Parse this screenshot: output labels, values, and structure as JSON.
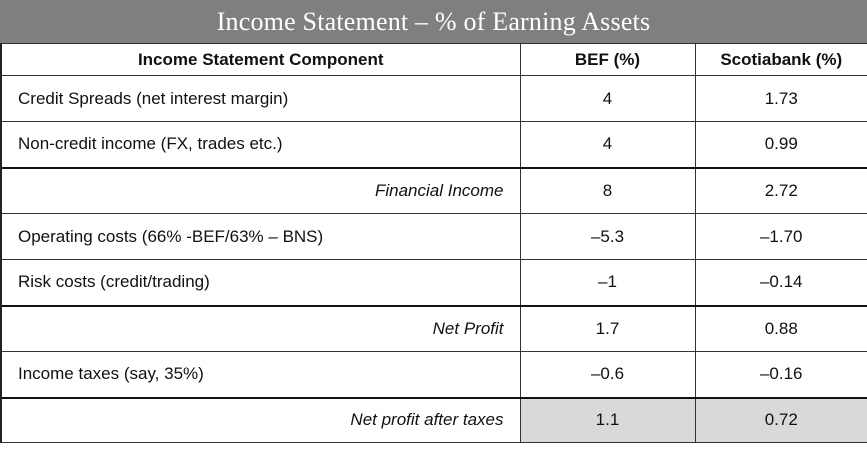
{
  "title": "Income Statement – % of Earning Assets",
  "columns": {
    "component": "Income Statement Component",
    "bef": "BEF (%)",
    "scotiabank": "Scotiabank (%)"
  },
  "rows": [
    {
      "label": "Credit Spreads (net interest margin)",
      "bef": "4",
      "scotiabank": "1.73"
    },
    {
      "label": "Non-credit income (FX, trades etc.)",
      "bef": "4",
      "scotiabank": "0.99"
    },
    {
      "label": "Financial Income",
      "bef": "8",
      "scotiabank": "2.72"
    },
    {
      "label": "Operating costs (66% -BEF/63% – BNS)",
      "bef": "–5.3",
      "scotiabank": "–1.70"
    },
    {
      "label": "Risk costs (credit/trading)",
      "bef": "–1",
      "scotiabank": "–0.14"
    },
    {
      "label": "Net Profit",
      "bef": "1.7",
      "scotiabank": "0.88"
    },
    {
      "label": "Income taxes (say, 35%)",
      "bef": "–0.6",
      "scotiabank": "–0.16"
    },
    {
      "label": "Net profit after taxes",
      "bef": "1.1",
      "scotiabank": "0.72"
    }
  ],
  "colors": {
    "title_background": "#7f7f7f",
    "title_text": "#ffffff",
    "highlight_cell": "#d9d9d9"
  }
}
